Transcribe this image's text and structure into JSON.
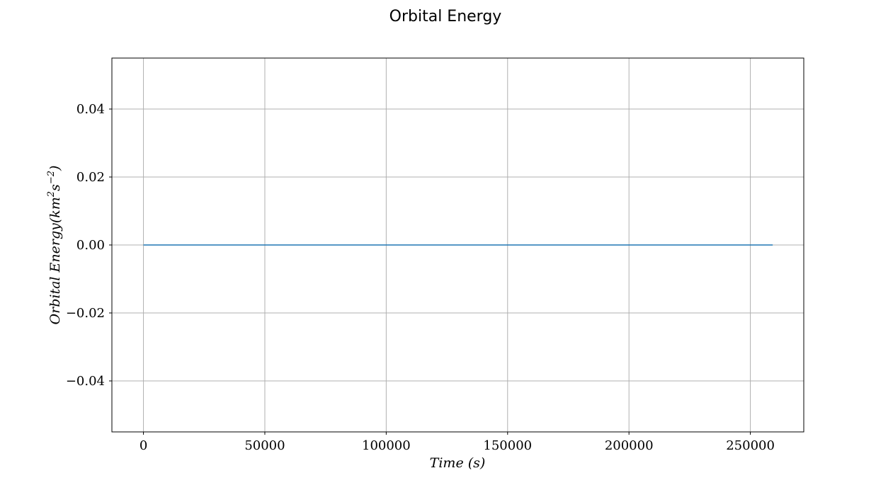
{
  "chart_data": {
    "type": "line",
    "title": "Orbital Energy",
    "xlabel": "Time (s)",
    "ylabel": {
      "prefix": "Orbital Energy(km",
      "sup1": "2",
      "mid": "s",
      "sup2": "−2",
      "suffix": ")"
    },
    "xlim": [
      -13000,
      272000
    ],
    "ylim": [
      -0.055,
      0.055
    ],
    "xticks": [
      0,
      50000,
      100000,
      150000,
      200000,
      250000
    ],
    "xtick_labels": [
      "0",
      "50000",
      "100000",
      "150000",
      "200000",
      "250000"
    ],
    "yticks": [
      -0.04,
      -0.02,
      0.0,
      0.02,
      0.04
    ],
    "ytick_labels": [
      "−0.04",
      "−0.02",
      "0.00",
      "0.02",
      "0.04"
    ],
    "grid": true,
    "series": [
      {
        "color": "#1f77b4",
        "x": [
          0,
          259200
        ],
        "y": [
          0.0,
          0.0
        ]
      }
    ]
  }
}
